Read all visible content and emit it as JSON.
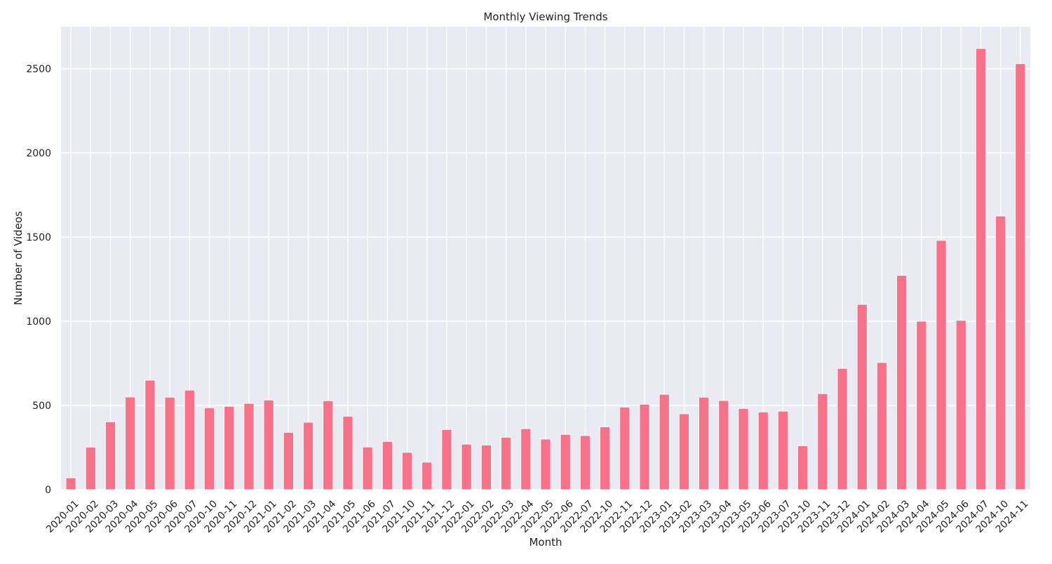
{
  "chart_data": {
    "type": "bar",
    "title": "Monthly Viewing Trends",
    "xlabel": "Month",
    "ylabel": "Number of Videos",
    "ylim": [
      0,
      2750
    ],
    "yticks": [
      0,
      500,
      1000,
      1500,
      2000,
      2500
    ],
    "grid": true,
    "legend": "none",
    "colors": {
      "bar": "#f77189",
      "background": "#eaeaf2",
      "grid": "#ffffff"
    },
    "categories": [
      "2020-01",
      "2020-02",
      "2020-03",
      "2020-04",
      "2020-05",
      "2020-06",
      "2020-07",
      "2020-10",
      "2020-11",
      "2020-12",
      "2021-01",
      "2021-02",
      "2021-03",
      "2021-04",
      "2021-05",
      "2021-06",
      "2021-07",
      "2021-10",
      "2021-11",
      "2021-12",
      "2022-01",
      "2022-02",
      "2022-03",
      "2022-04",
      "2022-05",
      "2022-06",
      "2022-07",
      "2022-10",
      "2022-11",
      "2022-12",
      "2023-01",
      "2023-02",
      "2023-03",
      "2023-04",
      "2023-05",
      "2023-06",
      "2023-07",
      "2023-10",
      "2023-11",
      "2023-12",
      "2024-01",
      "2024-02",
      "2024-03",
      "2024-04",
      "2024-05",
      "2024-06",
      "2024-07",
      "2024-10",
      "2024-11"
    ],
    "values": [
      70,
      252,
      403,
      550,
      650,
      549,
      591,
      486,
      495,
      512,
      532,
      340,
      400,
      528,
      436,
      253,
      286,
      221,
      163,
      357,
      270,
      265,
      311,
      362,
      300,
      328,
      321,
      373,
      490,
      507,
      566,
      450,
      549,
      529,
      482,
      461,
      466,
      260,
      570,
      720,
      1100,
      755,
      1272,
      1000,
      1480,
      1005,
      2620,
      1625,
      2530
    ]
  }
}
